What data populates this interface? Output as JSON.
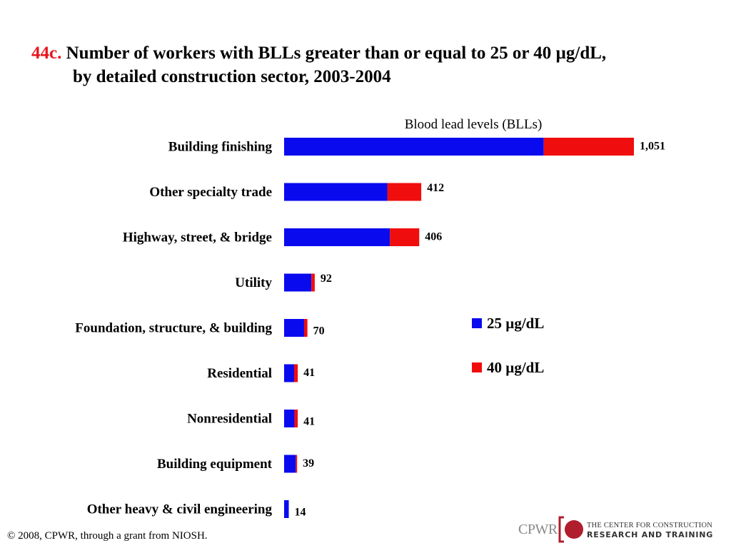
{
  "header": {
    "number": "44c.",
    "line1": "Number of workers with BLLs greater than or equal to 25 or 40 µg/dL,",
    "line2": "by detailed construction sector, 2003-2004"
  },
  "chart_data": {
    "type": "bar",
    "orientation": "horizontal",
    "stacked": true,
    "title": "Blood lead levels (BLLs)",
    "categories": [
      "Building finishing",
      "Other specialty trade",
      "Highway, street, & bridge",
      "Utility",
      "Foundation, structure, & building",
      "Residential",
      "Nonresidential",
      "Building equipment",
      "Other heavy & civil engineering"
    ],
    "series": [
      {
        "name": "25 µg/dL",
        "color": "#0a0aee",
        "values": [
          780,
          310,
          318,
          82,
          60,
          30,
          31,
          35,
          14
        ]
      },
      {
        "name": "40 µg/dL",
        "color": "#f00d0d",
        "values": [
          271,
          102,
          88,
          10,
          10,
          11,
          10,
          4,
          0
        ]
      }
    ],
    "totals": [
      "1,051",
      "412",
      "406",
      "92",
      "70",
      "41",
      "41",
      "39",
      "14"
    ],
    "xlim": [
      0,
      1051
    ],
    "grid": false,
    "legend_position": "right"
  },
  "footer": {
    "copyright": "© 2008, CPWR, through a grant from NIOSH."
  },
  "logo": {
    "short_name": "CPWR",
    "org_line1": "THE CENTER FOR CONSTRUCTION",
    "org_line2": "RESEARCH AND TRAINING"
  }
}
